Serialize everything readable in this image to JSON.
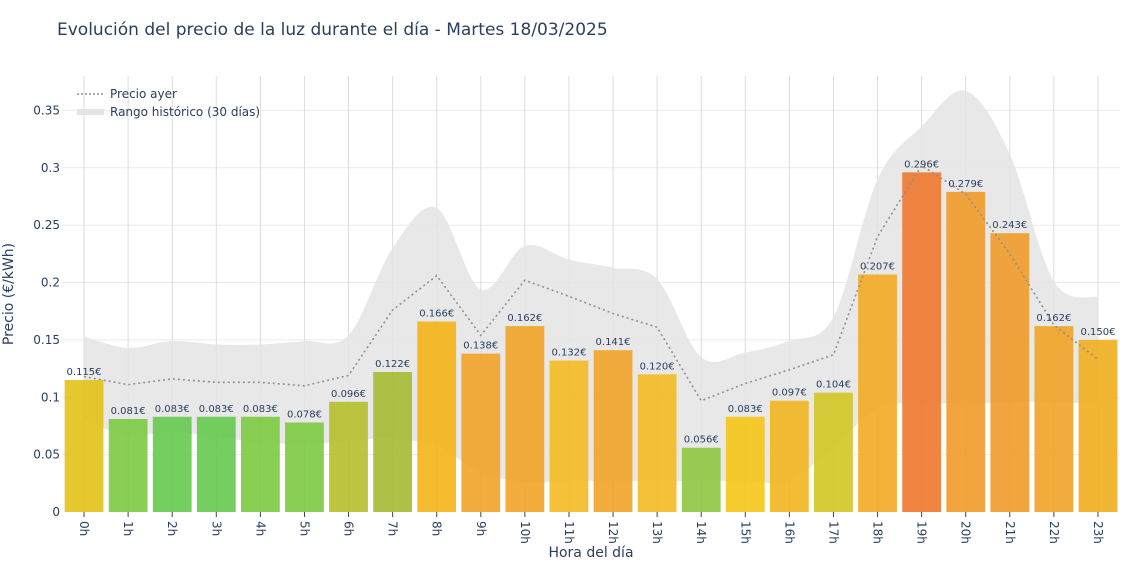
{
  "chart_data": {
    "type": "bar",
    "title": "Evolución del precio de la luz durante el día - Martes 18/03/2025",
    "xlabel": "Hora del día",
    "ylabel": "Precio (€/kWh)",
    "ylim": [
      0,
      0.38
    ],
    "yticks": [
      0,
      0.05,
      0.1,
      0.15,
      0.2,
      0.25,
      0.3,
      0.35
    ],
    "ytick_labels": [
      "0",
      "0.05",
      "0.1",
      "0.15",
      "0.2",
      "0.25",
      "0.3",
      "0.35"
    ],
    "grid": true,
    "legend_position": "top-left",
    "categories": [
      "0h",
      "1h",
      "2h",
      "3h",
      "4h",
      "5h",
      "6h",
      "7h",
      "8h",
      "9h",
      "10h",
      "11h",
      "12h",
      "13h",
      "14h",
      "15h",
      "16h",
      "17h",
      "18h",
      "19h",
      "20h",
      "21h",
      "22h",
      "23h"
    ],
    "series": [
      {
        "type": "bar",
        "values": [
          0.115,
          0.081,
          0.083,
          0.083,
          0.083,
          0.078,
          0.096,
          0.122,
          0.166,
          0.138,
          0.162,
          0.132,
          0.141,
          0.12,
          0.056,
          0.083,
          0.097,
          0.104,
          0.207,
          0.296,
          0.279,
          0.243,
          0.162,
          0.15
        ],
        "labels": [
          "0.115€",
          "0.081€",
          "0.083€",
          "0.083€",
          "0.083€",
          "0.078€",
          "0.096€",
          "0.122€",
          "0.166€",
          "0.138€",
          "0.162€",
          "0.132€",
          "0.141€",
          "0.120€",
          "0.056€",
          "0.083€",
          "0.097€",
          "0.104€",
          "0.207€",
          "0.296€",
          "0.279€",
          "0.243€",
          "0.162€",
          "0.150€"
        ],
        "colors": [
          "#e0c010",
          "#78c83c",
          "#62c84a",
          "#62c84a",
          "#78c83c",
          "#78c83c",
          "#b4bc24",
          "#a4b82c",
          "#f4b010",
          "#f0a020",
          "#f0a020",
          "#f4b81c",
          "#f0a020",
          "#f4b81c",
          "#8cc43c",
          "#f4c410",
          "#f0b418",
          "#d0c41c",
          "#f0a81c",
          "#ee7428",
          "#f09824",
          "#f09824",
          "#f0a020",
          "#f0ac18"
        ]
      },
      {
        "name": "Precio ayer",
        "type": "line",
        "style": "dotted",
        "color": "#909090",
        "values": [
          0.118,
          0.111,
          0.116,
          0.113,
          0.113,
          0.11,
          0.119,
          0.176,
          0.206,
          0.154,
          0.202,
          0.188,
          0.173,
          0.161,
          0.097,
          0.112,
          0.124,
          0.137,
          0.24,
          0.302,
          0.277,
          0.225,
          0.163,
          0.133
        ]
      },
      {
        "name": "Rango histórico (30 días)",
        "type": "area",
        "color": "#e4e4e4",
        "upper": [
          0.153,
          0.143,
          0.149,
          0.146,
          0.146,
          0.149,
          0.154,
          0.23,
          0.265,
          0.194,
          0.232,
          0.22,
          0.213,
          0.203,
          0.135,
          0.139,
          0.149,
          0.17,
          0.29,
          0.336,
          0.367,
          0.312,
          0.201,
          0.187
        ],
        "lower": [
          0.08,
          0.067,
          0.07,
          0.065,
          0.061,
          0.059,
          0.062,
          0.064,
          0.057,
          0.035,
          0.026,
          0.027,
          0.027,
          0.027,
          0.027,
          0.027,
          0.027,
          0.057,
          0.09,
          0.095,
          0.094,
          0.096,
          0.096,
          0.094
        ]
      }
    ]
  }
}
